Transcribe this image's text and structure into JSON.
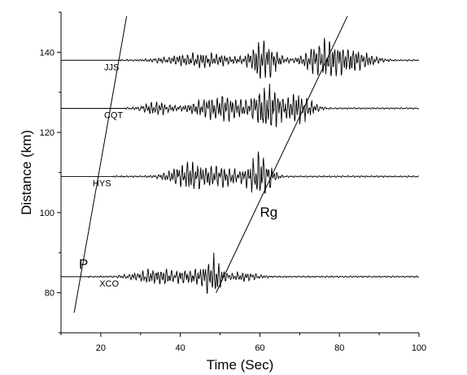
{
  "chart_data": {
    "type": "line",
    "title": "",
    "xlabel": "Time (Sec)",
    "ylabel": "Distance (km)",
    "xlim": [
      10,
      100
    ],
    "ylim": [
      70,
      150
    ],
    "xticks": [
      20,
      40,
      60,
      80,
      100
    ],
    "yticks": [
      80,
      100,
      120,
      140
    ],
    "grid": false,
    "legend": "none",
    "series": [
      {
        "name": "JJS",
        "distance": 138,
        "onset": 25,
        "bursts": [
          {
            "center": 45,
            "width": 9,
            "amp": 1.6
          },
          {
            "center": 61,
            "width": 3.5,
            "amp": 5.0
          },
          {
            "center": 76,
            "width": 5,
            "amp": 4.2
          },
          {
            "center": 84,
            "width": 5,
            "amp": 2.4
          }
        ]
      },
      {
        "name": "CQT",
        "distance": 126,
        "onset": 26,
        "bursts": [
          {
            "center": 34,
            "width": 4,
            "amp": 1.4
          },
          {
            "center": 50,
            "width": 7,
            "amp": 3.0
          },
          {
            "center": 62,
            "width": 4,
            "amp": 5.2
          },
          {
            "center": 70,
            "width": 3.5,
            "amp": 3.4
          }
        ]
      },
      {
        "name": "HYS",
        "distance": 109,
        "onset": 23,
        "bursts": [
          {
            "center": 42,
            "width": 5,
            "amp": 3.2
          },
          {
            "center": 51,
            "width": 5,
            "amp": 2.2
          },
          {
            "center": 60,
            "width": 3,
            "amp": 5.8
          }
        ]
      },
      {
        "name": "XCO",
        "distance": 84,
        "onset": 17,
        "bursts": [
          {
            "center": 34,
            "width": 6,
            "amp": 1.8
          },
          {
            "center": 43,
            "width": 4,
            "amp": 1.4
          },
          {
            "center": 48,
            "width": 2.5,
            "amp": 4.6
          },
          {
            "center": 56,
            "width": 4,
            "amp": 0.9
          }
        ]
      }
    ],
    "trace_amplitude_km": 1.0,
    "annotations": [
      {
        "label": "P",
        "x": 14.5,
        "y": 86
      },
      {
        "label": "Rg",
        "x": 60,
        "y": 99
      }
    ],
    "moveout_lines": [
      {
        "name": "P",
        "from": [
          13.3,
          75
        ],
        "to": [
          26.5,
          149
        ]
      },
      {
        "name": "Rg",
        "from": [
          49,
          80
        ],
        "to": [
          82,
          149
        ]
      }
    ]
  }
}
